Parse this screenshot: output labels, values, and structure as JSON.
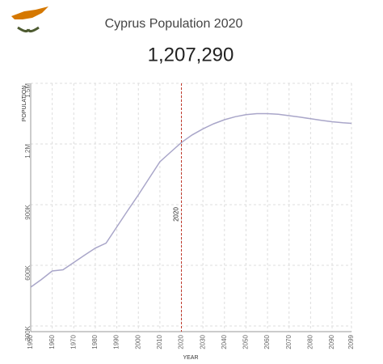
{
  "chart_data": {
    "type": "line",
    "title": "Cyprus Population 2020",
    "headline": "1,207,290",
    "x_label": "YEAR",
    "y_label": "POPULATION",
    "highlight_year": 2020,
    "x": [
      1950,
      1955,
      1960,
      1965,
      1970,
      1975,
      1980,
      1985,
      1990,
      1995,
      2000,
      2005,
      2010,
      2015,
      2020,
      2025,
      2030,
      2035,
      2040,
      2045,
      2050,
      2055,
      2060,
      2065,
      2070,
      2075,
      2080,
      2085,
      2090,
      2095,
      2099
    ],
    "series": [
      {
        "name": "Population",
        "color": "#a9a6c9",
        "values": [
          492000,
          530000,
          572000,
          578000,
          614000,
          650000,
          685000,
          710000,
          790000,
          870000,
          948000,
          1030000,
          1112000,
          1160000,
          1207290,
          1245000,
          1275000,
          1300000,
          1320000,
          1335000,
          1345000,
          1350000,
          1350000,
          1347000,
          1340000,
          1333000,
          1325000,
          1317000,
          1310000,
          1305000,
          1302000
        ]
      }
    ],
    "xlim": [
      1950,
      2099
    ],
    "ylim": [
      272000,
      1500000
    ],
    "xticks": [
      1950,
      1960,
      1970,
      1980,
      1990,
      2000,
      2010,
      2020,
      2030,
      2040,
      2050,
      2060,
      2070,
      2080,
      2090,
      2099
    ],
    "yticks": [
      {
        "value": 300000,
        "label": "300K"
      },
      {
        "value": 600000,
        "label": "600K"
      },
      {
        "value": 900000,
        "label": "900K"
      },
      {
        "value": 1200000,
        "label": "1.2M"
      },
      {
        "value": 1500000,
        "label": "1.5M"
      }
    ],
    "grid": true
  }
}
